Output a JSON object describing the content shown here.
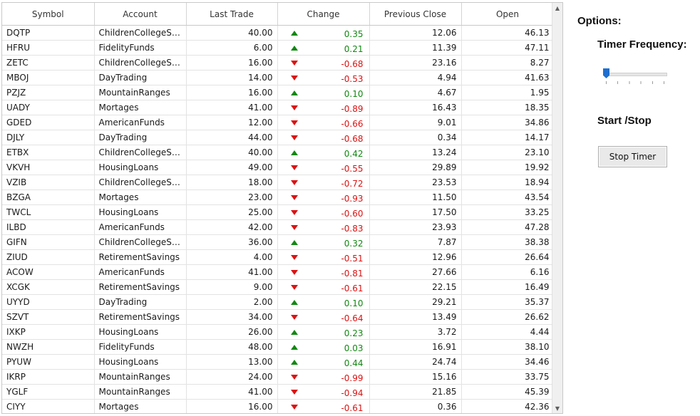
{
  "grid": {
    "columns": [
      "Symbol",
      "Account",
      "Last Trade",
      "Change",
      "Previous Close",
      "Open"
    ],
    "rows": [
      {
        "symbol": "DQTP",
        "account": "ChildrenCollegeSavi...",
        "last": "40.00",
        "dir": "up",
        "change": "0.35",
        "prev": "12.06",
        "open": "46.13"
      },
      {
        "symbol": "HFRU",
        "account": "FidelityFunds",
        "last": "6.00",
        "dir": "up",
        "change": "0.21",
        "prev": "11.39",
        "open": "47.11"
      },
      {
        "symbol": "ZETC",
        "account": "ChildrenCollegeSavi...",
        "last": "16.00",
        "dir": "down",
        "change": "-0.68",
        "prev": "23.16",
        "open": "8.27"
      },
      {
        "symbol": "MBOJ",
        "account": "DayTrading",
        "last": "14.00",
        "dir": "down",
        "change": "-0.53",
        "prev": "4.94",
        "open": "41.63"
      },
      {
        "symbol": "PZJZ",
        "account": "MountainRanges",
        "last": "16.00",
        "dir": "up",
        "change": "0.10",
        "prev": "4.67",
        "open": "1.95"
      },
      {
        "symbol": "UADY",
        "account": "Mortages",
        "last": "41.00",
        "dir": "down",
        "change": "-0.89",
        "prev": "16.43",
        "open": "18.35"
      },
      {
        "symbol": "GDED",
        "account": "AmericanFunds",
        "last": "12.00",
        "dir": "down",
        "change": "-0.66",
        "prev": "9.01",
        "open": "34.86"
      },
      {
        "symbol": "DJLY",
        "account": "DayTrading",
        "last": "44.00",
        "dir": "down",
        "change": "-0.68",
        "prev": "0.34",
        "open": "14.17"
      },
      {
        "symbol": "ETBX",
        "account": "ChildrenCollegeSavi...",
        "last": "40.00",
        "dir": "up",
        "change": "0.42",
        "prev": "13.24",
        "open": "23.10"
      },
      {
        "symbol": "VKVH",
        "account": "HousingLoans",
        "last": "49.00",
        "dir": "down",
        "change": "-0.55",
        "prev": "29.89",
        "open": "19.92"
      },
      {
        "symbol": "VZIB",
        "account": "ChildrenCollegeSavi...",
        "last": "18.00",
        "dir": "down",
        "change": "-0.72",
        "prev": "23.53",
        "open": "18.94"
      },
      {
        "symbol": "BZGA",
        "account": "Mortages",
        "last": "23.00",
        "dir": "down",
        "change": "-0.93",
        "prev": "11.50",
        "open": "43.54"
      },
      {
        "symbol": "TWCL",
        "account": "HousingLoans",
        "last": "25.00",
        "dir": "down",
        "change": "-0.60",
        "prev": "17.50",
        "open": "33.25"
      },
      {
        "symbol": "ILBD",
        "account": "AmericanFunds",
        "last": "42.00",
        "dir": "down",
        "change": "-0.83",
        "prev": "23.93",
        "open": "47.28"
      },
      {
        "symbol": "GIFN",
        "account": "ChildrenCollegeSavi...",
        "last": "36.00",
        "dir": "up",
        "change": "0.32",
        "prev": "7.87",
        "open": "38.38"
      },
      {
        "symbol": "ZIUD",
        "account": "RetirementSavings",
        "last": "4.00",
        "dir": "down",
        "change": "-0.51",
        "prev": "12.96",
        "open": "26.64"
      },
      {
        "symbol": "ACOW",
        "account": "AmericanFunds",
        "last": "41.00",
        "dir": "down",
        "change": "-0.81",
        "prev": "27.66",
        "open": "6.16"
      },
      {
        "symbol": "XCGK",
        "account": "RetirementSavings",
        "last": "9.00",
        "dir": "down",
        "change": "-0.61",
        "prev": "22.15",
        "open": "16.49"
      },
      {
        "symbol": "UYYD",
        "account": "DayTrading",
        "last": "2.00",
        "dir": "up",
        "change": "0.10",
        "prev": "29.21",
        "open": "35.37"
      },
      {
        "symbol": "SZVT",
        "account": "RetirementSavings",
        "last": "34.00",
        "dir": "down",
        "change": "-0.64",
        "prev": "13.49",
        "open": "26.62"
      },
      {
        "symbol": "IXKP",
        "account": "HousingLoans",
        "last": "26.00",
        "dir": "up",
        "change": "0.23",
        "prev": "3.72",
        "open": "4.44"
      },
      {
        "symbol": "NWZH",
        "account": "FidelityFunds",
        "last": "48.00",
        "dir": "up",
        "change": "0.03",
        "prev": "16.91",
        "open": "38.10"
      },
      {
        "symbol": "PYUW",
        "account": "HousingLoans",
        "last": "13.00",
        "dir": "up",
        "change": "0.44",
        "prev": "24.74",
        "open": "34.46"
      },
      {
        "symbol": "IKRP",
        "account": "MountainRanges",
        "last": "24.00",
        "dir": "down",
        "change": "-0.99",
        "prev": "15.16",
        "open": "33.75"
      },
      {
        "symbol": "YGLF",
        "account": "MountainRanges",
        "last": "41.00",
        "dir": "down",
        "change": "-0.94",
        "prev": "21.85",
        "open": "45.39"
      },
      {
        "symbol": "CIYY",
        "account": "Mortages",
        "last": "16.00",
        "dir": "down",
        "change": "-0.61",
        "prev": "0.36",
        "open": "42.36"
      }
    ],
    "colors": {
      "up": "#118811",
      "down": "#dd1111"
    }
  },
  "options": {
    "title": "Options:",
    "frequency_label": "Timer Frequency:",
    "slider_value": 0,
    "startstop_label": "Start /Stop",
    "button_label": "Stop Timer"
  }
}
